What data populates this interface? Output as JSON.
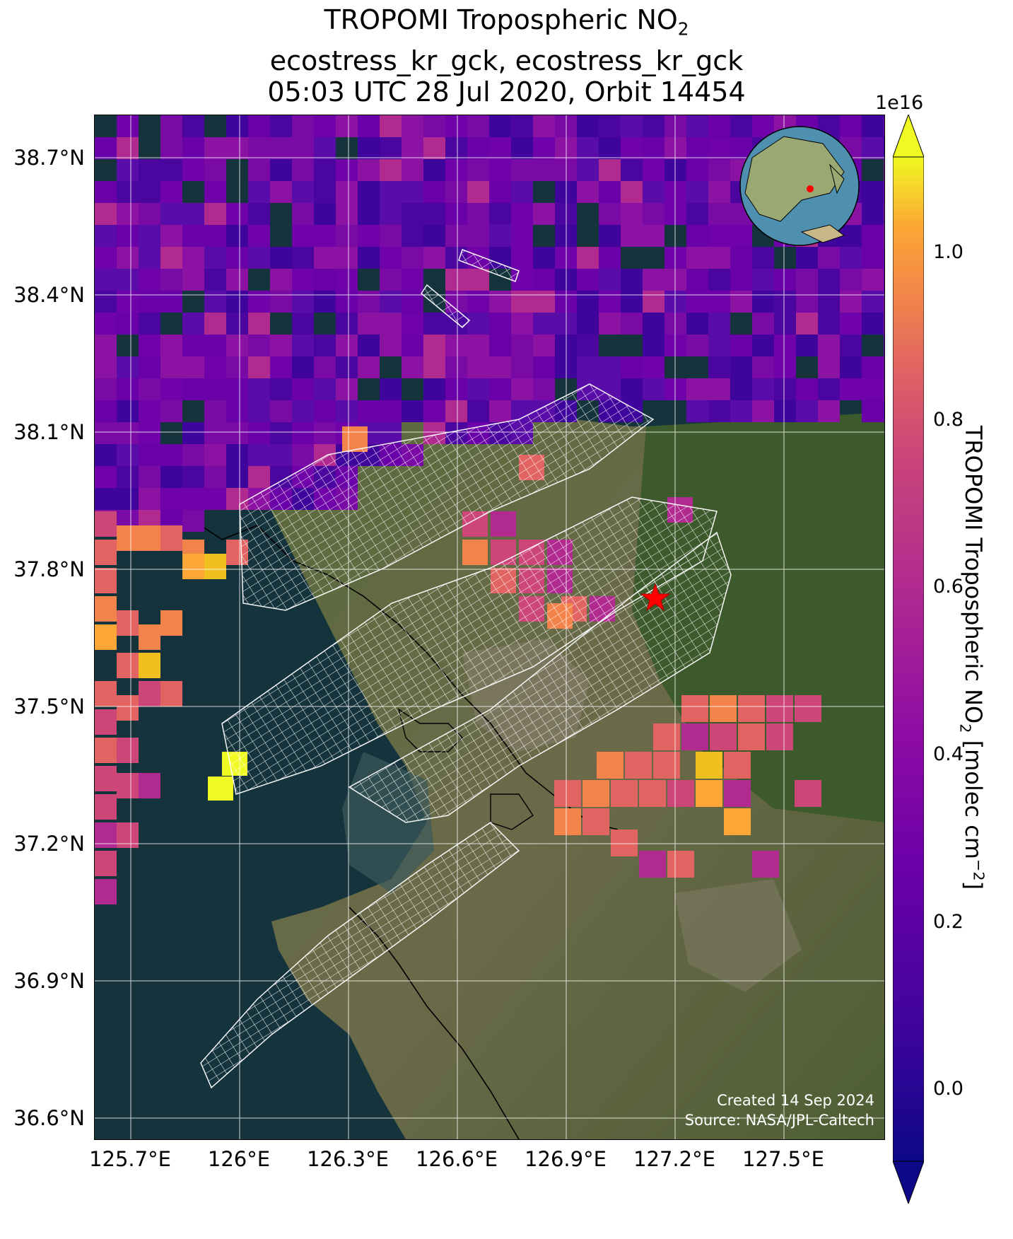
{
  "title": {
    "line1": "TROPOMI Tropospheric NO",
    "line1_sub": "2",
    "line2": "ecostress_kr_gck, ecostress_kr_gck",
    "line3": "05:03 UTC 28 Jul 2020, Orbit 14454"
  },
  "axes": {
    "lat_labels": [
      "38.7°N",
      "38.4°N",
      "38.1°N",
      "37.8°N",
      "37.5°N",
      "37.2°N",
      "36.9°N",
      "36.6°N"
    ],
    "lon_labels": [
      "125.7°E",
      "126°E",
      "126.3°E",
      "126.6°E",
      "126.9°E",
      "127.2°E",
      "127.5°E"
    ]
  },
  "colorbar": {
    "exponent": "1e16",
    "ticks": [
      "1.0",
      "0.8",
      "0.6",
      "0.4",
      "0.2",
      "0.0"
    ],
    "label": "TROPOMI Tropospheric NO",
    "label_sub": "2",
    "label_units": " [molec cm",
    "label_sup": "−2",
    "label_end": "]",
    "colormap": "plasma",
    "range": [
      -0.1,
      1.1
    ],
    "extend": "both"
  },
  "credit": {
    "line1": "Created 14 Sep 2024",
    "line2": "Source: NASA/JPL-Caltech"
  },
  "colors": {
    "ocean": "#14333c",
    "land": "#4a5a36",
    "grid": "#ffffff",
    "star": "#ff0000",
    "footprint": "#ffffff"
  },
  "marker": {
    "name": "target-location-star",
    "lat": 37.74,
    "lon": 127.13
  },
  "inset": {
    "name": "globe-inset",
    "highlight": "Korean Peninsula"
  }
}
